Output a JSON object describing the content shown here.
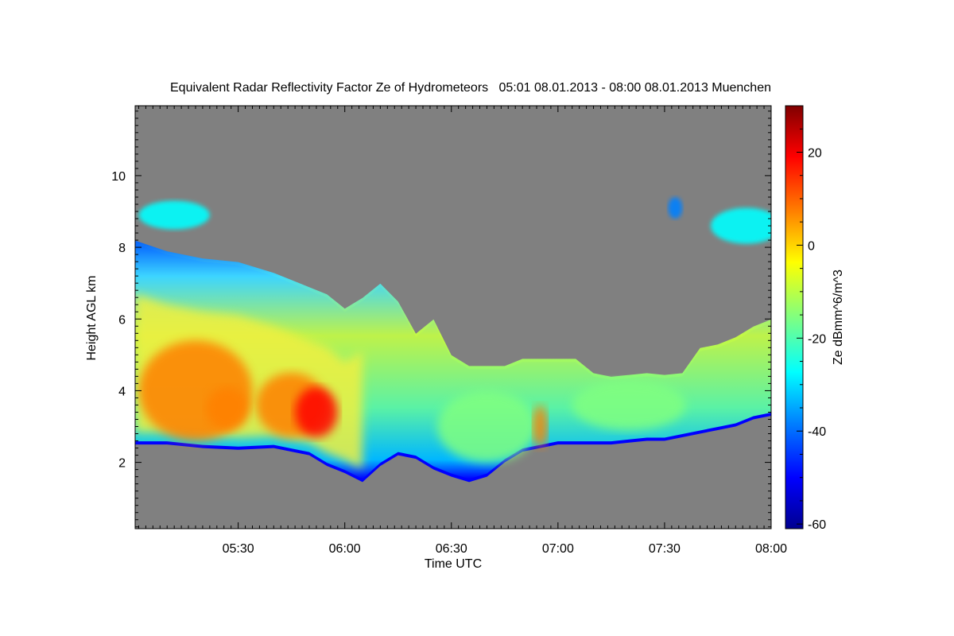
{
  "chart_data": {
    "type": "heatmap",
    "title": "Equivalent Radar Reflectivity Factor Ze of Hydrometeors   05:01 08.01.2013 - 08:00 08.01.2013 Muenchen",
    "xlabel": "Time UTC",
    "ylabel": "Height AGL km",
    "colorbar_label": "Ze dBmm^6/m^3",
    "x_range_minutes": [
      301,
      480
    ],
    "x_ticks": [
      {
        "label": "05:30",
        "minutes": 330
      },
      {
        "label": "06:00",
        "minutes": 360
      },
      {
        "label": "06:30",
        "minutes": 390
      },
      {
        "label": "07:00",
        "minutes": 420
      },
      {
        "label": "07:30",
        "minutes": 450
      },
      {
        "label": "08:00",
        "minutes": 480
      }
    ],
    "y_range_km": [
      0.15,
      11.95
    ],
    "y_ticks": [
      {
        "label": "2",
        "km": 2
      },
      {
        "label": "4",
        "km": 4
      },
      {
        "label": "6",
        "km": 6
      },
      {
        "label": "8",
        "km": 8
      },
      {
        "label": "10",
        "km": 10
      }
    ],
    "colorbar_range": [
      -61,
      30
    ],
    "colorbar_ticks": [
      {
        "label": "20",
        "value": 20
      },
      {
        "label": "0",
        "value": 0
      },
      {
        "label": "-20",
        "value": -20
      },
      {
        "label": "-40",
        "value": -40
      },
      {
        "label": "-60",
        "value": -60
      }
    ],
    "background_color": "#808080",
    "colormap": [
      "#00008f",
      "#0000ff",
      "#0080ff",
      "#00ffff",
      "#80ff80",
      "#ffff00",
      "#ff8000",
      "#ff0000",
      "#800000"
    ],
    "cloud_profile": [
      {
        "t": 301,
        "base": 2.5,
        "top": 8.1
      },
      {
        "t": 310,
        "base": 2.5,
        "top": 7.8
      },
      {
        "t": 320,
        "base": 2.4,
        "top": 7.6
      },
      {
        "t": 330,
        "base": 2.35,
        "top": 7.5
      },
      {
        "t": 340,
        "base": 2.4,
        "top": 7.2
      },
      {
        "t": 350,
        "base": 2.2,
        "top": 6.8
      },
      {
        "t": 355,
        "base": 1.9,
        "top": 6.6
      },
      {
        "t": 360,
        "base": 1.7,
        "top": 6.2
      },
      {
        "t": 365,
        "base": 1.45,
        "top": 6.5
      },
      {
        "t": 370,
        "base": 1.9,
        "top": 6.9
      },
      {
        "t": 375,
        "base": 2.2,
        "top": 6.4
      },
      {
        "t": 380,
        "base": 2.1,
        "top": 5.5
      },
      {
        "t": 385,
        "base": 1.8,
        "top": 5.9
      },
      {
        "t": 390,
        "base": 1.6,
        "top": 4.9
      },
      {
        "t": 395,
        "base": 1.45,
        "top": 4.6
      },
      {
        "t": 400,
        "base": 1.6,
        "top": 4.6
      },
      {
        "t": 405,
        "base": 2.0,
        "top": 4.6
      },
      {
        "t": 410,
        "base": 2.3,
        "top": 4.8
      },
      {
        "t": 415,
        "base": 2.4,
        "top": 4.8
      },
      {
        "t": 420,
        "base": 2.5,
        "top": 4.8
      },
      {
        "t": 425,
        "base": 2.5,
        "top": 4.8
      },
      {
        "t": 430,
        "base": 2.5,
        "top": 4.4
      },
      {
        "t": 435,
        "base": 2.5,
        "top": 4.3
      },
      {
        "t": 440,
        "base": 2.55,
        "top": 4.35
      },
      {
        "t": 445,
        "base": 2.6,
        "top": 4.4
      },
      {
        "t": 450,
        "base": 2.6,
        "top": 4.35
      },
      {
        "t": 455,
        "base": 2.7,
        "top": 4.4
      },
      {
        "t": 460,
        "base": 2.8,
        "top": 5.1
      },
      {
        "t": 465,
        "base": 2.9,
        "top": 5.2
      },
      {
        "t": 470,
        "base": 3.0,
        "top": 5.4
      },
      {
        "t": 475,
        "base": 3.2,
        "top": 5.7
      },
      {
        "t": 480,
        "base": 3.3,
        "top": 5.9
      }
    ],
    "cores": [
      {
        "t": 318,
        "h": 4.0,
        "value": 2,
        "rt": 16,
        "rh": 1.4
      },
      {
        "t": 345,
        "h": 3.6,
        "value": 10,
        "rt": 10,
        "rh": 0.9
      },
      {
        "t": 352,
        "h": 3.4,
        "value": 14,
        "rt": 6,
        "rh": 0.7
      },
      {
        "t": 327,
        "h": 3.5,
        "value": 6,
        "rt": 6,
        "rh": 0.6
      },
      {
        "t": 400,
        "h": 3.0,
        "value": -15,
        "rt": 14,
        "rh": 1.0
      },
      {
        "t": 415,
        "h": 3.0,
        "value": 8,
        "rt": 2,
        "rh": 0.6
      },
      {
        "t": 440,
        "h": 3.6,
        "value": -18,
        "rt": 16,
        "rh": 0.7
      }
    ],
    "upper_patches": [
      {
        "t": 312,
        "h": 8.9,
        "rt": 10,
        "rh": 0.4,
        "value": -30
      },
      {
        "t": 473,
        "h": 8.6,
        "rt": 10,
        "rh": 0.5,
        "value": -30
      },
      {
        "t": 453,
        "h": 9.1,
        "rt": 2,
        "rh": 0.3,
        "value": -35
      }
    ]
  }
}
